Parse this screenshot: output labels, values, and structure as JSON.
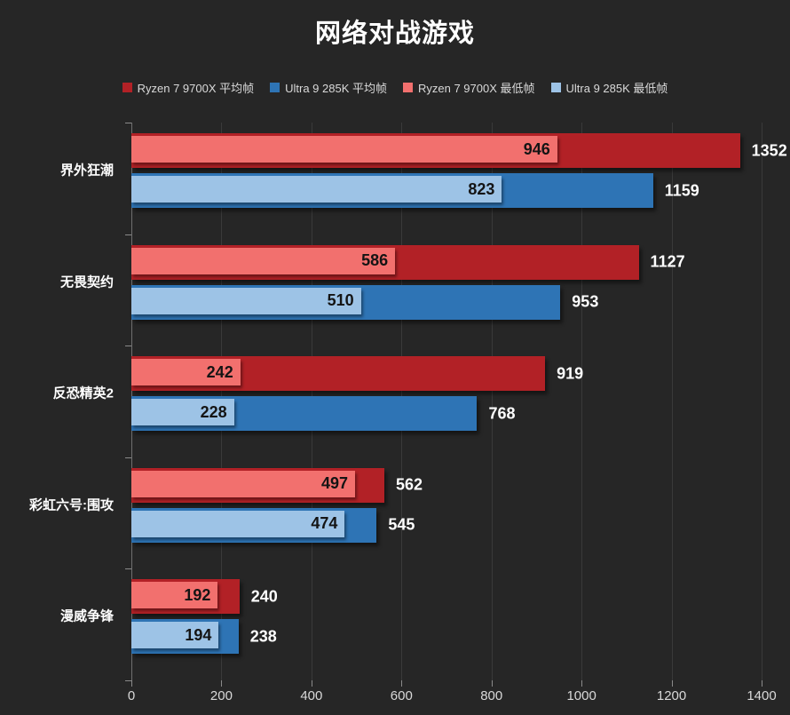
{
  "title": "网络对战游戏",
  "legend": [
    {
      "label": "Ryzen 7 9700X 平均帧",
      "color": "#b22126"
    },
    {
      "label": "Ultra 9 285K 平均帧",
      "color": "#2e74b5"
    },
    {
      "label": "Ryzen 7 9700X 最低帧",
      "color": "#f2706e"
    },
    {
      "label": "Ultra 9 285K 最低帧",
      "color": "#9dc3e6"
    }
  ],
  "chart_data": {
    "type": "bar",
    "orientation": "horizontal",
    "title": "网络对战游戏",
    "categories": [
      "界外狂潮",
      "无畏契约",
      "反恐精英2",
      "彩虹六号:围攻",
      "漫威争锋"
    ],
    "series": [
      {
        "name": "Ryzen 7 9700X 平均帧",
        "role": "ryzen-avg",
        "color": "#b22126",
        "values": [
          1352,
          1127,
          919,
          562,
          240
        ]
      },
      {
        "name": "Ultra 9 285K 平均帧",
        "role": "ultra-avg",
        "color": "#2e74b5",
        "values": [
          1159,
          953,
          768,
          545,
          238
        ]
      },
      {
        "name": "Ryzen 7 9700X 最低帧",
        "role": "ryzen-min",
        "color": "#f2706e",
        "values": [
          946,
          586,
          242,
          497,
          192
        ]
      },
      {
        "name": "Ultra 9 285K 最低帧",
        "role": "ultra-min",
        "color": "#9dc3e6",
        "values": [
          823,
          510,
          228,
          474,
          194
        ]
      }
    ],
    "xlim": [
      0,
      1400
    ],
    "x_ticks": [
      0,
      200,
      400,
      600,
      800,
      1000,
      1200,
      1400
    ],
    "grid": true,
    "legend_position": "top",
    "value_labels": "avg outside right (white), min inside right (black)"
  },
  "colors": {
    "background": "#262626",
    "gridline": "#3a3a3a",
    "axis": "#6f6f6f",
    "tick": "#8a8a8a",
    "tick_label": "#d9d9d9",
    "category_label": "#ffffff",
    "avg_value_label": "#ffffff",
    "min_value_label": "#141414"
  }
}
